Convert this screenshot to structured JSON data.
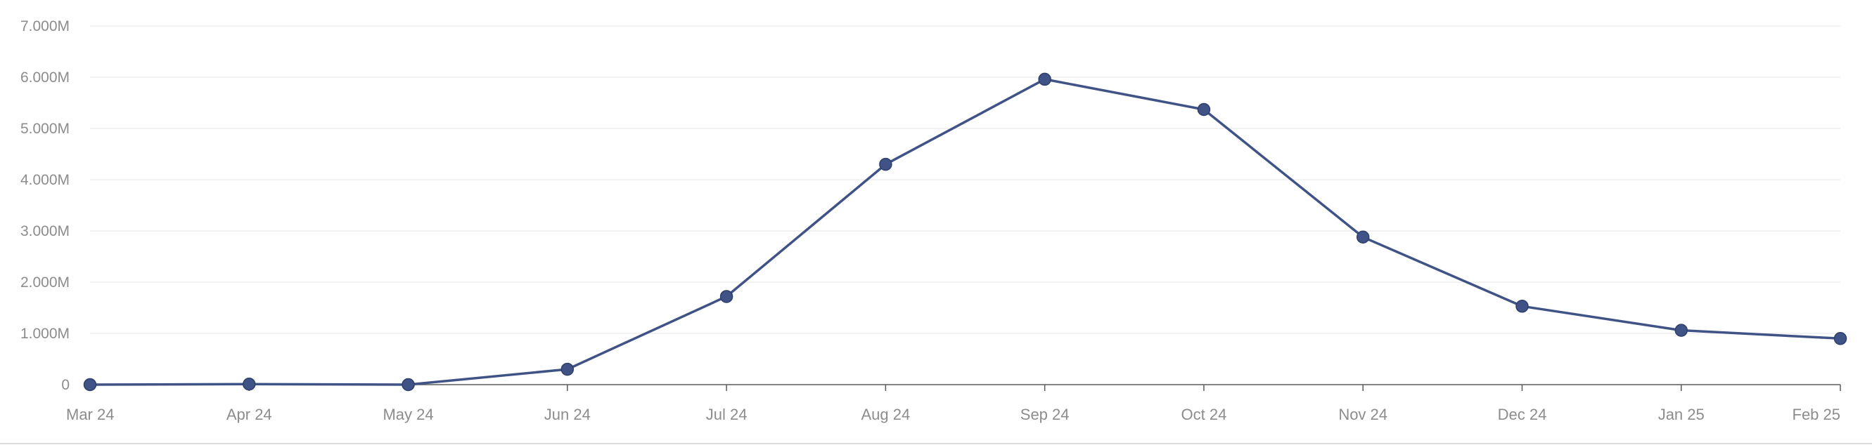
{
  "chart_data": {
    "type": "line",
    "categories": [
      "Mar 24",
      "Apr 24",
      "May 24",
      "Jun 24",
      "Jul 24",
      "Aug 24",
      "Sep 24",
      "Oct 24",
      "Nov 24",
      "Dec 24",
      "Jan 25",
      "Feb 25"
    ],
    "series": [
      {
        "values": [
          0,
          10000,
          0,
          300000,
          1720000,
          4300000,
          5960000,
          5370000,
          2880000,
          1530000,
          1060000,
          900000
        ]
      }
    ],
    "ylim": [
      0,
      7000000
    ],
    "yticks": [
      0,
      1000000,
      2000000,
      3000000,
      4000000,
      5000000,
      6000000,
      7000000
    ],
    "ytick_labels": [
      "0",
      "1.000M",
      "2.000M",
      "3.000M",
      "4.000M",
      "5.000M",
      "6.000M",
      "7.000M"
    ],
    "grid": true,
    "legend": "none",
    "colors": {
      "line": "#3f5386",
      "marker": "#3f5386",
      "grid": "#e6e6e6",
      "axis": "#5a5a5a",
      "label": "#8c8c8c"
    }
  }
}
